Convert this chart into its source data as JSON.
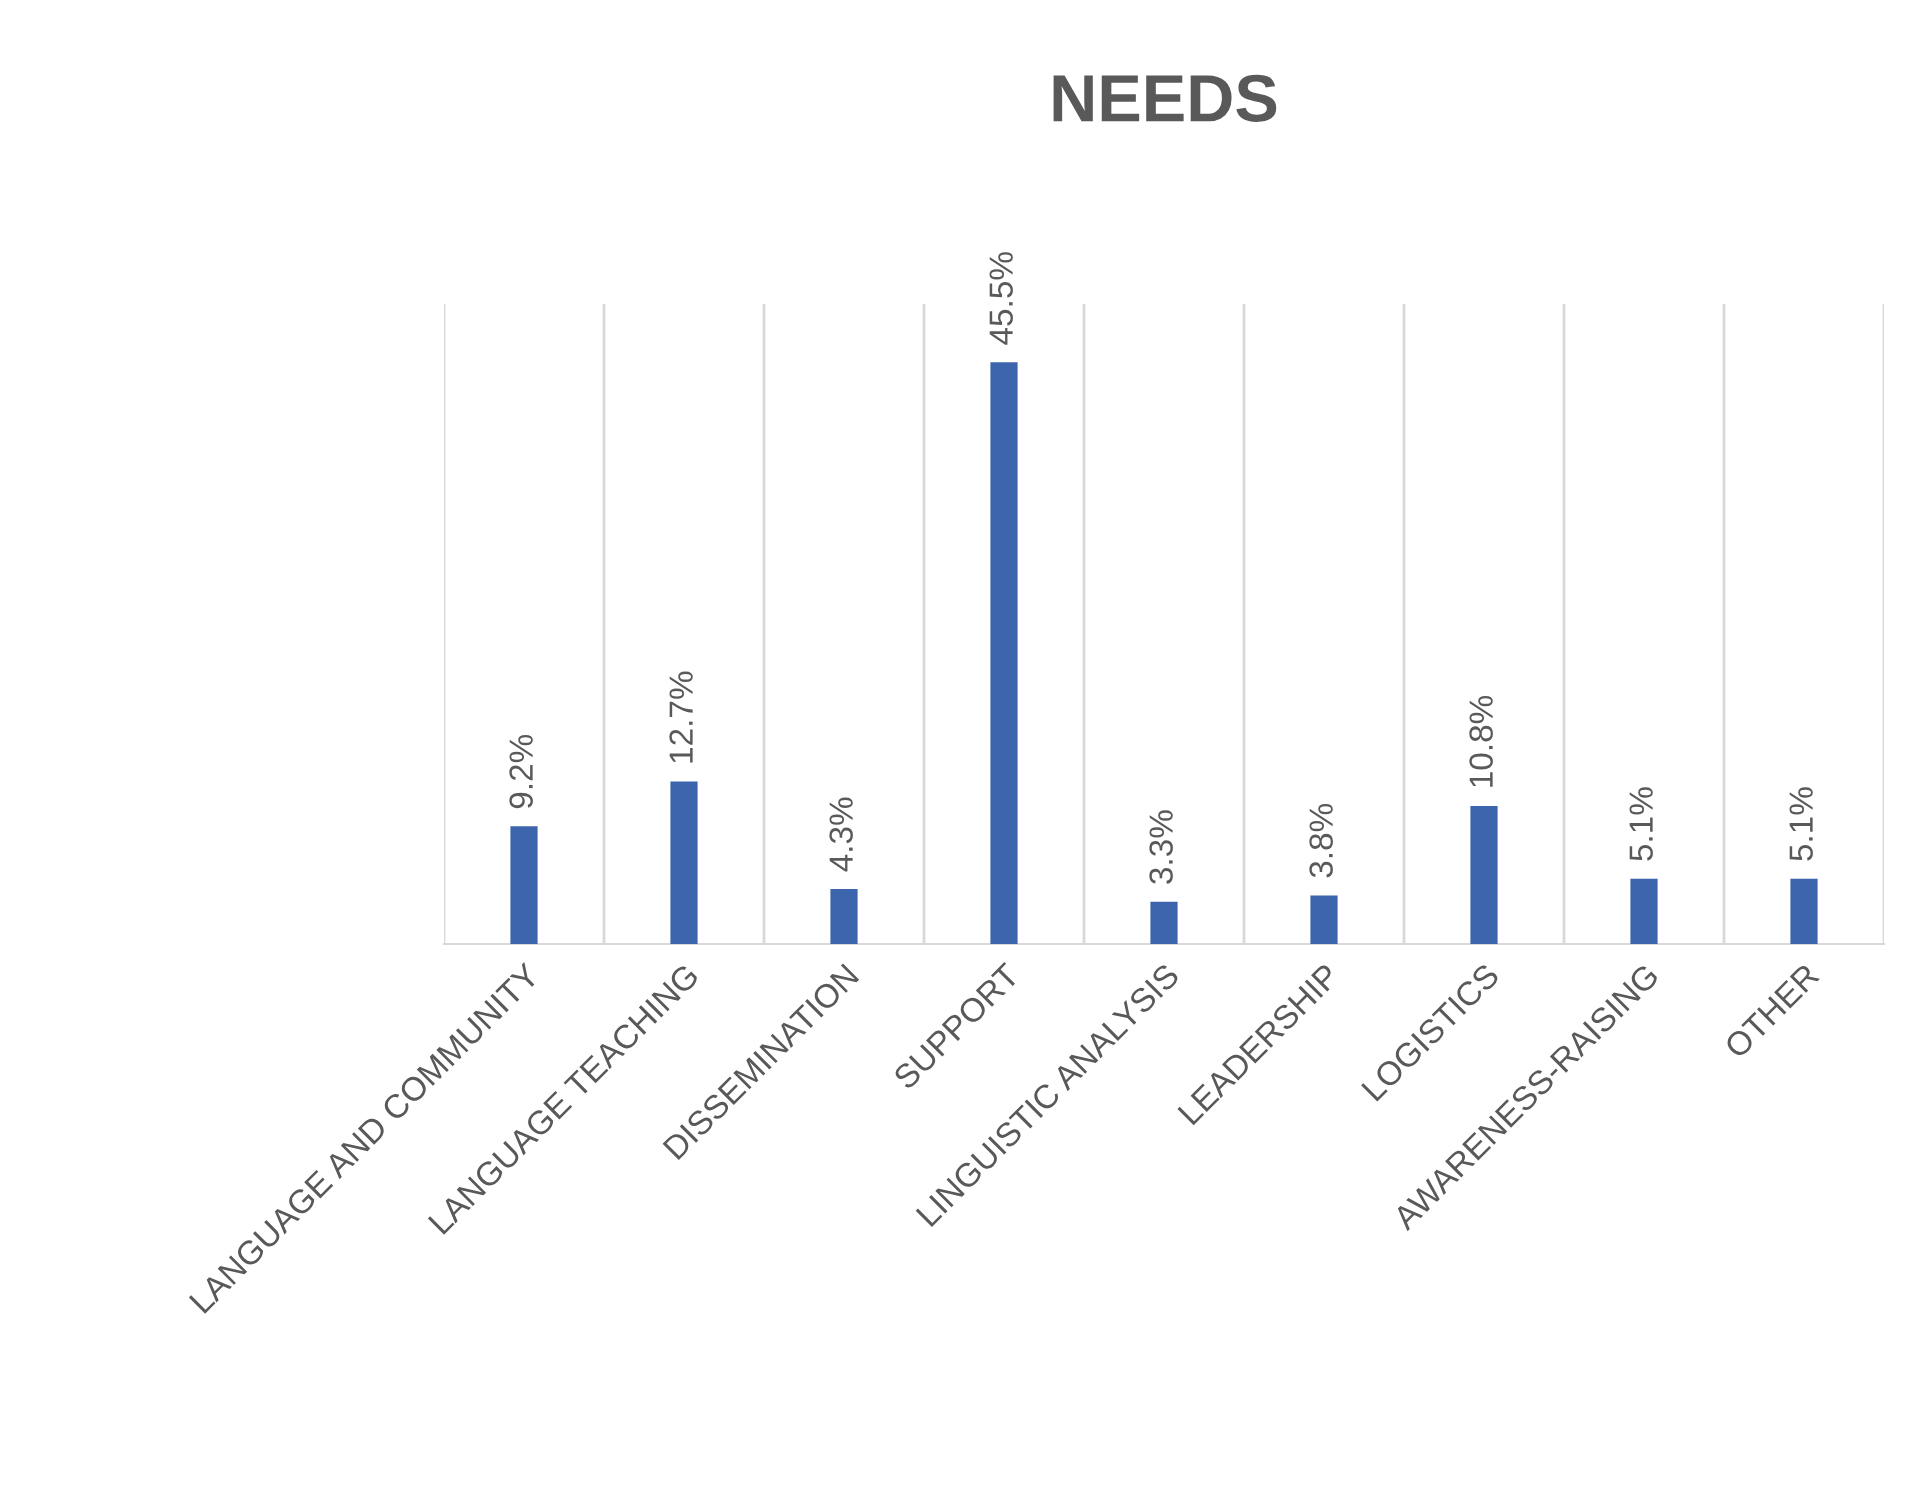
{
  "chart_data": {
    "type": "bar",
    "title": "NEEDS",
    "categories": [
      "LANGUAGE AND COMMUNITY",
      "LANGUAGE TEACHING",
      "DISSEMINATION",
      "SUPPORT",
      "LINGUISTIC ANALYSIS",
      "LEADERSHIP",
      "LOGISTICS",
      "AWARENESS-RAISING",
      "OTHER"
    ],
    "values": [
      9.2,
      12.7,
      4.3,
      45.5,
      3.3,
      3.8,
      10.8,
      5.1,
      5.1
    ],
    "value_labels": [
      "9.2%",
      "12.7%",
      "4.3%",
      "45.5%",
      "3.3%",
      "3.8%",
      "10.8%",
      "5.1%",
      "5.1%"
    ],
    "color": "#3c65ad",
    "grid": "x"
  }
}
